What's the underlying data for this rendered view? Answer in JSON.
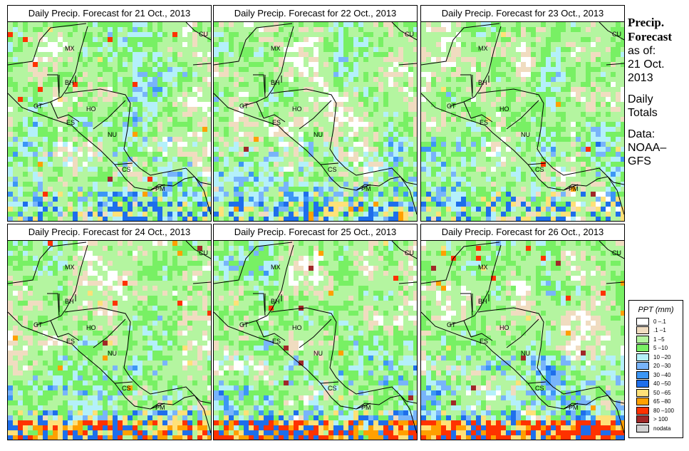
{
  "panels": [
    {
      "title": "Daily Precip. Forecast for  21 Oct., 2013"
    },
    {
      "title": "Daily Precip. Forecast for  22 Oct., 2013"
    },
    {
      "title": "Daily Precip. Forecast for  23 Oct., 2013"
    },
    {
      "title": "Daily Precip. Forecast for  24 Oct., 2013"
    },
    {
      "title": "Daily Precip. Forecast for  25 Oct., 2013"
    },
    {
      "title": "Daily Precip. Forecast for  26 Oct., 2013"
    }
  ],
  "country_labels": {
    "MX": "MX",
    "BH": "BH",
    "GT": "GT",
    "HO": "HO",
    "ES": "ES",
    "NU": "NU",
    "CS": "CS",
    "PM": "PM",
    "CU": "CU"
  },
  "sidebar": {
    "heading1": "Precip.",
    "heading2": "Forecast",
    "asof": "as of:",
    "date1": "21 Oct.",
    "date2": "2013",
    "daily1": "Daily",
    "daily2": "Totals",
    "data1": "Data:",
    "data2": "NOAA–",
    "data3": "GFS"
  },
  "legend": {
    "title": "PPT (mm)",
    "items": [
      {
        "label": "0 –.1",
        "color": "#ffffff"
      },
      {
        "label": ".1 –1",
        "color": "#f0dcc0"
      },
      {
        "label": "1 –5",
        "color": "#b4f5a0"
      },
      {
        "label": "5 –10",
        "color": "#78f064"
      },
      {
        "label": "10 –20",
        "color": "#b4f0fa"
      },
      {
        "label": "20 –30",
        "color": "#78b4fa"
      },
      {
        "label": "30 –40",
        "color": "#3c96f5"
      },
      {
        "label": "40 –50",
        "color": "#1e6eeb"
      },
      {
        "label": "50 –65",
        "color": "#ffe178"
      },
      {
        "label": "65 –80",
        "color": "#ffa000"
      },
      {
        "label": "80 –100",
        "color": "#ff3200"
      },
      {
        "label": "> 100",
        "color": "#a02828"
      },
      {
        "label": "nodata",
        "color": "#d2d2d2"
      }
    ]
  }
}
